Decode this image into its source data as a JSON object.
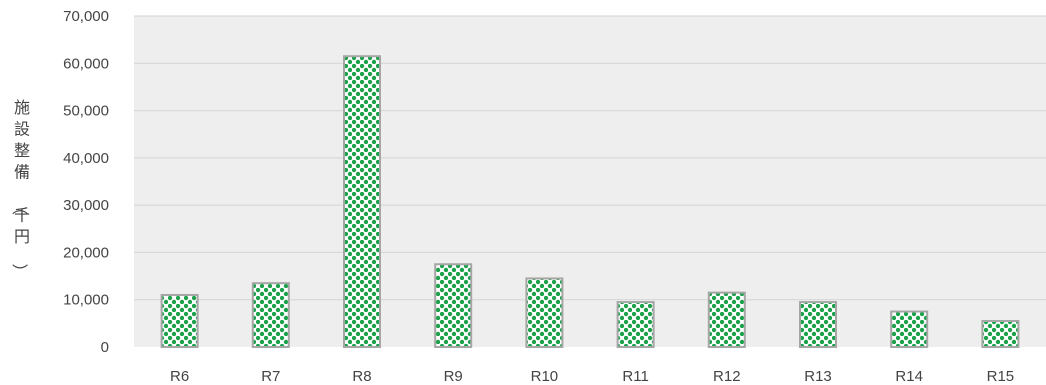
{
  "chart_data": {
    "type": "bar",
    "categories": [
      "R6",
      "R7",
      "R8",
      "R9",
      "R10",
      "R11",
      "R12",
      "R13",
      "R14",
      "R15"
    ],
    "values": [
      11000,
      13500,
      61500,
      17500,
      14500,
      9500,
      11500,
      9500,
      7500,
      5500
    ],
    "ylabel": "施設整備（千円）",
    "ylim": [
      0,
      70000
    ],
    "yticks": [
      0,
      10000,
      20000,
      30000,
      40000,
      50000,
      60000,
      70000
    ],
    "ytick_labels": [
      "0",
      "10,000",
      "20,000",
      "30,000",
      "40,000",
      "50,000",
      "60,000",
      "70,000"
    ],
    "grid": true,
    "bar_color": "#1aa24a",
    "bar_border_color": "#a6a6a6",
    "plot_background": "#eeeeee",
    "grid_color": "#d4d4d4"
  }
}
